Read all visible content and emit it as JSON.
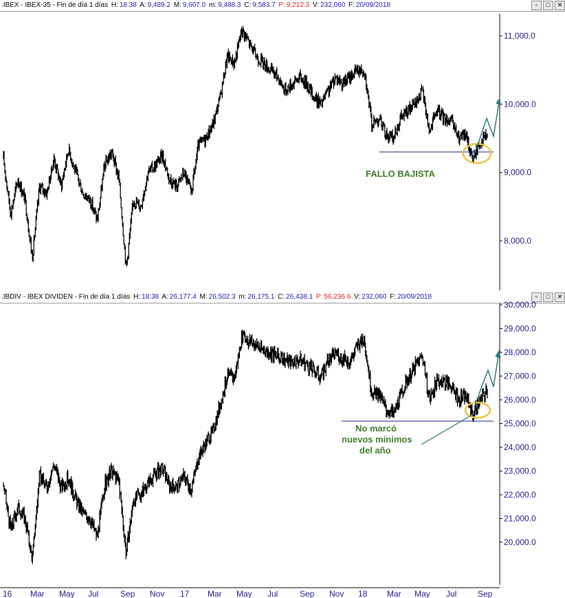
{
  "top_header": {
    "symbol": ".IBEX - IBEX-35 - Fin de día 1 días",
    "h_label": "H:",
    "h_val": "18:38",
    "a_label": "A:",
    "a_val": "9,489.2",
    "m_label": "M:",
    "m_val": "9,607.0",
    "mn_label": "m:",
    "mn_val": "9,488.3",
    "c_label": "C:",
    "c_val": "9,583.7",
    "p_label": "P:",
    "p_val": "9,212.3",
    "v_label": "V:",
    "v_val": "232,060",
    "f_label": "F:",
    "f_val": "20/09/2018"
  },
  "bottom_header": {
    "symbol": ".IBDIV - IBEX DIVIDEN - Fin de día 1 días",
    "h_label": "H:",
    "h_val": "18:38",
    "a_label": "A:",
    "a_val": "26,177.4",
    "m_label": "M:",
    "m_val": "26,502.3",
    "mn_label": "m:",
    "mn_val": "26,175.1",
    "c_label": "C:",
    "c_val": "26,438.1",
    "p_label": "P:",
    "p_val": "56,236.6",
    "v_label": "V:",
    "v_val": "232,060",
    "f_label": "F:",
    "f_val": "20/09/2018"
  },
  "window_buttons": {
    "restore": "▫",
    "maximize": "□",
    "close": "✕"
  },
  "colors": {
    "price": "#000000",
    "support": "#1a1a8a",
    "circle": "#f0c040",
    "arrow": "#2a7a7a",
    "annotation": "#3f7a2a",
    "tick": "#1a1a8a"
  },
  "chart_data": [
    {
      "type": "bar",
      "yticks": [
        "11,000.0",
        "10,000.0",
        "9,000.0",
        "8,000.0"
      ],
      "ytick_values": [
        11000,
        10000,
        9000,
        8000
      ],
      "ylim": [
        7400,
        11350
      ],
      "support_level": 9300,
      "annotation": "FALLO BAJISTA",
      "x_labels": [],
      "series": [
        {
          "values": [
            9200,
            8400,
            8900,
            8600,
            7750,
            8800,
            8700,
            9200,
            8800,
            9350,
            9000,
            8700,
            8600,
            8300,
            9100,
            9300,
            8900,
            7600,
            8600,
            8500,
            9000,
            9100,
            9250,
            8900,
            8800,
            9000,
            8700,
            9400,
            9500,
            9700,
            10100,
            10700,
            10600,
            11100,
            10900,
            10700,
            10600,
            10500,
            10400,
            10200,
            10300,
            10400,
            10300,
            10100,
            10000,
            10200,
            10400,
            10300,
            10400,
            10500,
            10500,
            9700,
            9800,
            9550,
            9500,
            9800,
            9900,
            10000,
            10200,
            9600,
            9900,
            9800,
            9750,
            9500,
            9550,
            9200,
            9450,
            9550
          ]
        }
      ]
    },
    {
      "type": "bar",
      "yticks": [
        "30,000.0",
        "29,000.0",
        "28,000.0",
        "27,000.0",
        "26,000.0",
        "25,000.0",
        "24,000.0",
        "23,000.0",
        "22,000.0",
        "21,000.0",
        "20,000.0"
      ],
      "ytick_values": [
        30000,
        29000,
        28000,
        27000,
        26000,
        25000,
        24000,
        23000,
        22000,
        21000,
        20000
      ],
      "ylim": [
        19000,
        30050
      ],
      "support_level": 25100,
      "annotation": [
        "No marcó",
        "nuevos mínimos",
        "del año"
      ],
      "x_labels": [
        "16",
        "Mar",
        "May",
        "Jul",
        "Sep",
        "Nov",
        "17",
        "Mar",
        "May",
        "Jul",
        "Sep",
        "Nov",
        "18",
        "Mar",
        "May",
        "Jul",
        "Sep"
      ],
      "series": [
        {
          "values": [
            22400,
            20500,
            21500,
            21000,
            19300,
            22800,
            22300,
            23300,
            22300,
            22700,
            21800,
            21200,
            21000,
            20200,
            22400,
            23000,
            22500,
            19500,
            21800,
            22000,
            22500,
            22900,
            23100,
            22400,
            22300,
            22800,
            22200,
            23600,
            24200,
            24700,
            25800,
            27000,
            26900,
            28700,
            28500,
            28300,
            28100,
            28000,
            27800,
            27700,
            27600,
            27700,
            27500,
            27200,
            27000,
            27600,
            28000,
            27700,
            27600,
            28300,
            28500,
            26300,
            26200,
            25600,
            25400,
            26200,
            26900,
            27400,
            27900,
            26000,
            26800,
            26800,
            26600,
            26000,
            26200,
            25400,
            26000,
            26400
          ]
        }
      ]
    }
  ]
}
